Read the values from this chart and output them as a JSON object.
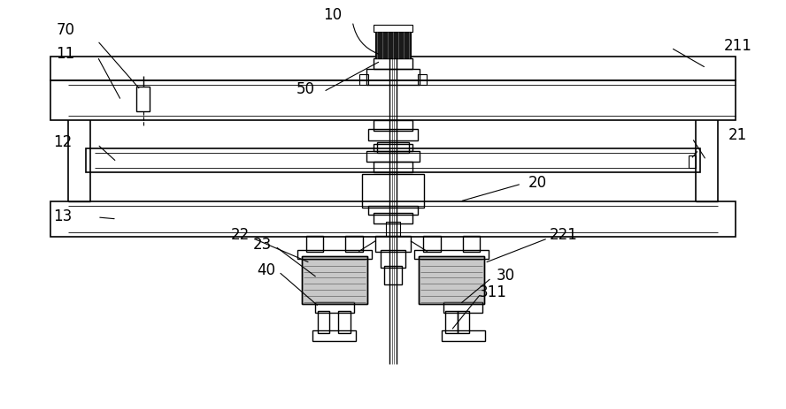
{
  "bg_color": "#ffffff",
  "line_color": "#000000",
  "fig_width": 8.88,
  "fig_height": 4.63,
  "dpi": 100
}
